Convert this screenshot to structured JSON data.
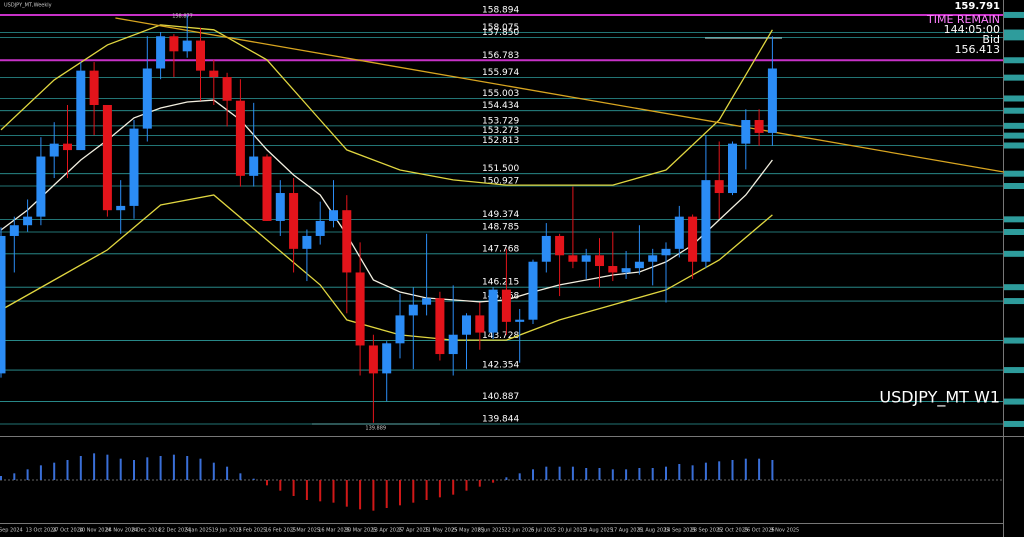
{
  "header": "USDJPY_MT,Weekly",
  "last_high": "159.791",
  "time_remain_label": "TIME REMAIN",
  "time_remain": "144:05:00",
  "bid_label": "Bid",
  "bid": "156.413",
  "symbol": "USDJPY_MT W1",
  "chart_data": [
    {
      "type": "candlestick",
      "categories": [
        "Sep 2024",
        null,
        "13 Oct 2024",
        null,
        "27 Oct 2024",
        null,
        "10 Nov 2024",
        null,
        "24 Nov 2024",
        null,
        "8 Dec 2024",
        null,
        "22 Dec 2024",
        null,
        "5 Jan 2025",
        null,
        "19 Jan 2025",
        null,
        "2 Feb 2025",
        null,
        "16 Feb 2025",
        null,
        "2 Mar 2025",
        null,
        "16 Mar 2025",
        null,
        "30 Mar 2025",
        null,
        "13 Apr 2025",
        null,
        "27 Apr 2025",
        null,
        "11 May 2025",
        null,
        "25 May 2025",
        null,
        "8 Jun 2025",
        null,
        "22 Jun 2025",
        null,
        "6 Jul 2025",
        null,
        "20 Jul 2025",
        null,
        "3 Aug 2025",
        null,
        "17 Aug 2025",
        null,
        "31 Aug 2025",
        null,
        "14 Sep 2025",
        null,
        "28 Sep 2025",
        null,
        "12 Oct 2025",
        null,
        "26 Oct 2025",
        null,
        "9 Nov 2025"
      ],
      "open": [
        142.2,
        148.6,
        149.1,
        149.5,
        152.3,
        152.9,
        152.6,
        156.3,
        154.7,
        149.8,
        150.0,
        153.6,
        156.4,
        157.9,
        157.2,
        157.7,
        156.3,
        156.0,
        154.9,
        151.4,
        152.3,
        149.3,
        150.6,
        148.0,
        148.6,
        149.3,
        149.8,
        146.9,
        143.5,
        142.2,
        143.6,
        144.9,
        145.4,
        145.7,
        143.1,
        144.0,
        144.9,
        144.1,
        146.1,
        144.6,
        144.7,
        147.4,
        148.6,
        147.7,
        147.4,
        147.7,
        147.2,
        146.9,
        147.1,
        147.4,
        147.7,
        148.0,
        149.5,
        147.4,
        151.2,
        150.6,
        152.9,
        154.0,
        153.4
      ],
      "high": [
        149.0,
        149.5,
        150.3,
        153.2,
        153.9,
        154.7,
        156.7,
        156.7,
        154.7,
        151.2,
        154.0,
        157.9,
        158.1,
        158.0,
        158.9,
        158.3,
        156.8,
        156.2,
        155.9,
        154.8,
        152.4,
        151.2,
        151.3,
        148.9,
        150.2,
        151.2,
        150.5,
        148.3,
        144.0,
        143.7,
        145.9,
        146.2,
        148.7,
        146.0,
        146.3,
        145.0,
        145.5,
        146.2,
        148.0,
        145.2,
        147.5,
        149.2,
        148.7,
        150.9,
        148.0,
        148.5,
        148.8,
        147.9,
        149.1,
        148.0,
        148.3,
        150.0,
        149.6,
        153.3,
        153.0,
        153.0,
        154.5,
        154.5,
        157.9
      ],
      "low": [
        142.0,
        146.9,
        148.8,
        149.1,
        151.3,
        151.3,
        152.6,
        153.3,
        149.5,
        148.7,
        149.4,
        153.0,
        155.9,
        156.0,
        156.9,
        154.9,
        154.7,
        153.7,
        150.9,
        150.9,
        149.3,
        148.6,
        146.9,
        146.5,
        148.2,
        149.0,
        145.0,
        142.1,
        139.9,
        140.9,
        142.9,
        142.4,
        144.9,
        142.8,
        142.1,
        142.4,
        143.3,
        143.8,
        144.0,
        142.7,
        144.5,
        146.9,
        145.8,
        147.1,
        146.6,
        146.2,
        146.5,
        146.6,
        146.8,
        146.3,
        145.5,
        147.6,
        146.6,
        147.1,
        149.4,
        150.5,
        151.7,
        152.8,
        152.8
      ],
      "close": [
        148.6,
        149.1,
        149.5,
        152.3,
        152.9,
        152.6,
        156.3,
        154.7,
        149.8,
        150.0,
        153.6,
        156.4,
        157.9,
        157.2,
        157.7,
        156.3,
        156.0,
        154.9,
        151.4,
        152.3,
        149.3,
        150.6,
        148.0,
        148.6,
        149.3,
        149.8,
        146.9,
        143.5,
        142.2,
        143.6,
        144.9,
        145.4,
        145.7,
        143.1,
        144.0,
        144.9,
        144.1,
        146.1,
        144.6,
        144.7,
        147.4,
        148.6,
        147.7,
        147.4,
        147.7,
        147.2,
        146.9,
        147.1,
        147.4,
        147.7,
        148.0,
        149.5,
        147.4,
        151.2,
        150.6,
        152.9,
        154.0,
        153.4,
        156.4
      ],
      "up_color": "#2b8cf5",
      "down_color": "#e3141b",
      "ylim": [
        139.33,
        159.59
      ],
      "high_label": "158.877",
      "low_label": "139.889",
      "levels": [
        158.894,
        158.075,
        {
          "value": 157.85,
          "label": "157.850"
        },
        156.783,
        155.974,
        155.003,
        154.434,
        153.729,
        153.273,
        152.813,
        {
          "value": 151.5,
          "label": "151.500"
        },
        150.927,
        149.374,
        148.785,
        147.768,
        146.215,
        145.568,
        143.728,
        142.354,
        140.887,
        139.844
      ],
      "level_color": "#2e9c9c",
      "key_level_color": "#c832c8",
      "key_levels": [
        158.894,
        156.783
      ],
      "overlays": [
        {
          "color": "#f2efe0",
          "x": [
            0,
            2,
            4,
            6,
            8,
            10,
            12,
            14,
            16,
            18,
            20,
            22,
            24,
            26,
            28,
            30,
            32,
            34,
            36,
            38,
            40,
            42,
            44,
            46,
            48,
            50,
            52,
            54,
            56,
            58
          ],
          "values": [
            148.88,
            149.81,
            150.98,
            152.14,
            153.07,
            154.1,
            154.56,
            154.84,
            154.93,
            154.0,
            152.61,
            151.44,
            150.51,
            148.65,
            146.55,
            145.99,
            145.71,
            145.62,
            145.53,
            145.62,
            145.99,
            146.32,
            146.55,
            146.78,
            146.92,
            147.39,
            148.18,
            149.35,
            150.51,
            152.14
          ]
        },
        {
          "color": "#e0d640",
          "x": [
            0,
            4,
            8,
            12,
            16,
            20,
            24,
            26,
            30,
            34,
            38,
            42,
            46,
            50,
            54,
            58
          ],
          "values": [
            153.54,
            155.87,
            157.5,
            158.43,
            158.2,
            156.8,
            154.0,
            152.61,
            151.67,
            151.21,
            150.97,
            150.97,
            150.97,
            151.67,
            154.0,
            158.2
          ]
        },
        {
          "color": "#e0d640",
          "x": [
            0,
            4,
            8,
            12,
            16,
            20,
            24,
            26,
            30,
            34,
            38,
            42,
            46,
            50,
            54,
            58
          ],
          "values": [
            145.15,
            146.55,
            147.95,
            150.04,
            150.51,
            148.41,
            146.32,
            144.69,
            143.99,
            143.75,
            143.75,
            144.69,
            145.39,
            146.09,
            147.48,
            149.58
          ]
        },
        {
          "color": "#d8a520",
          "x": [
            8.6,
            75.4
          ],
          "values": [
            158.75,
            151.58
          ]
        }
      ]
    },
    {
      "type": "bar",
      "values": [
        0.3,
        0.5,
        0.8,
        1.1,
        1.3,
        1.5,
        1.8,
        2.0,
        1.9,
        1.6,
        1.5,
        1.7,
        1.8,
        1.9,
        1.8,
        1.6,
        1.3,
        1.0,
        0.5,
        0.1,
        -0.4,
        -0.8,
        -1.2,
        -1.5,
        -1.6,
        -1.7,
        -2.0,
        -2.2,
        -2.3,
        -2.1,
        -1.9,
        -1.7,
        -1.5,
        -1.3,
        -1.1,
        -0.8,
        -0.5,
        -0.2,
        0.2,
        0.5,
        0.8,
        1.0,
        1.0,
        1.0,
        0.9,
        0.9,
        0.8,
        0.8,
        0.9,
        0.9,
        1.0,
        1.2,
        1.1,
        1.3,
        1.4,
        1.5,
        1.6,
        1.6,
        1.5
      ],
      "up_color": "#3a6fd8",
      "down_color": "#d01818",
      "ylim": [
        -3,
        3
      ]
    }
  ]
}
